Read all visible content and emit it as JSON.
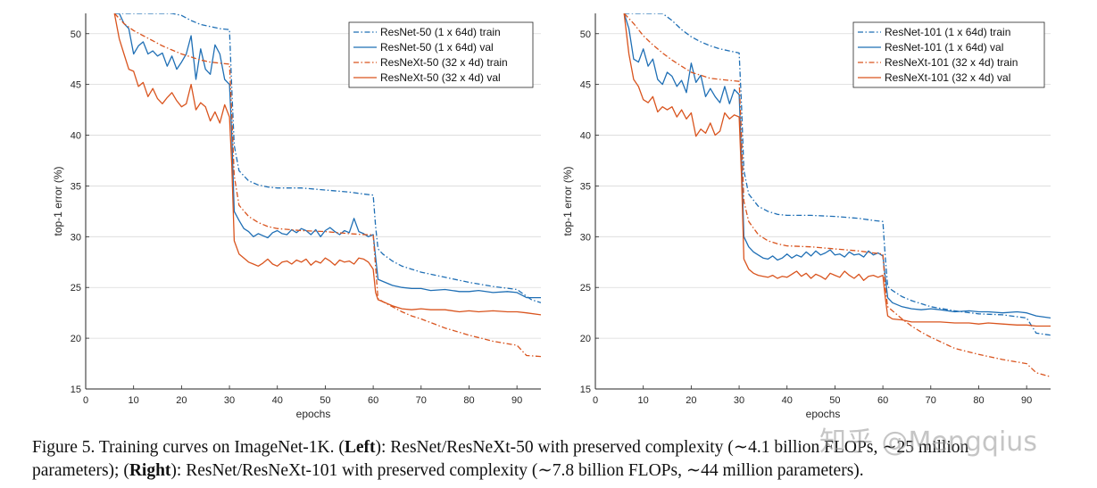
{
  "chart_data": [
    {
      "type": "line",
      "panel": "left",
      "xlabel": "epochs",
      "ylabel": "top-1 error (%)",
      "xlim": [
        0,
        95
      ],
      "ylim": [
        15,
        52
      ],
      "xticks": [
        "0",
        "10",
        "20",
        "30",
        "40",
        "50",
        "60",
        "70",
        "80",
        "90"
      ],
      "yticks": [
        "15",
        "20",
        "25",
        "30",
        "35",
        "40",
        "45",
        "50"
      ],
      "grid": "horizontal",
      "legend_position": "top-right",
      "series": [
        {
          "name": "ResNet-50 (1 x 64d) train",
          "color": "#1f6fb5",
          "style": "dashdot",
          "x": [
            6,
            8,
            10,
            12,
            14,
            16,
            18,
            20,
            22,
            24,
            26,
            28,
            30,
            30.5,
            31,
            32,
            34,
            36,
            38,
            40,
            45,
            50,
            55,
            58,
            60,
            60.5,
            61,
            62,
            64,
            66,
            68,
            70,
            75,
            80,
            85,
            90,
            93,
            95
          ],
          "y": [
            52,
            52,
            52,
            52,
            52,
            52,
            52,
            51.8,
            51.3,
            50.9,
            50.7,
            50.5,
            50.4,
            44.5,
            39,
            36.5,
            35.5,
            35.1,
            34.9,
            34.8,
            34.8,
            34.6,
            34.4,
            34.2,
            34.1,
            31,
            28.8,
            28.3,
            27.6,
            27.1,
            26.8,
            26.5,
            26.0,
            25.5,
            25.1,
            24.8,
            23.8,
            23.5
          ]
        },
        {
          "name": "ResNet-50 (1 x 64d) val",
          "color": "#1f6fb5",
          "style": "solid",
          "x": [
            6,
            7,
            8,
            9,
            10,
            11,
            12,
            13,
            14,
            15,
            16,
            17,
            18,
            19,
            20,
            21,
            22,
            23,
            24,
            25,
            26,
            27,
            28,
            29,
            30,
            30.5,
            31,
            32,
            33,
            34,
            35,
            36,
            37,
            38,
            39,
            40,
            41,
            42,
            43,
            44,
            45,
            46,
            47,
            48,
            49,
            50,
            51,
            52,
            53,
            54,
            55,
            56,
            57,
            58,
            59,
            60,
            60.5,
            61,
            62,
            64,
            66,
            68,
            70,
            72,
            75,
            78,
            80,
            82,
            85,
            88,
            90,
            92,
            95
          ],
          "y": [
            52,
            52,
            51,
            50.5,
            48,
            48.8,
            49.2,
            48,
            48.3,
            47.8,
            48.1,
            46.8,
            47.8,
            46.5,
            47.2,
            48,
            49.8,
            45.5,
            48.5,
            46.5,
            46,
            48.9,
            48,
            45.5,
            45,
            40,
            32.5,
            31.6,
            30.8,
            30.5,
            30.0,
            30.3,
            30.1,
            29.9,
            30.4,
            30.6,
            30.3,
            30.2,
            30.7,
            30.4,
            30.8,
            30.6,
            30.2,
            30.7,
            30.0,
            30.6,
            30.9,
            30.5,
            30.2,
            30.6,
            30.4,
            31.8,
            30.5,
            30.3,
            30.0,
            30.2,
            28,
            25.8,
            25.6,
            25.2,
            25.0,
            24.9,
            24.9,
            24.7,
            24.8,
            24.6,
            24.6,
            24.7,
            24.5,
            24.6,
            24.5,
            24.0,
            24.0
          ]
        },
        {
          "name": "ResNeXt-50 (32 x 4d) train",
          "color": "#d9541e",
          "style": "dashdot",
          "x": [
            6,
            8,
            10,
            12,
            14,
            16,
            18,
            20,
            22,
            24,
            26,
            28,
            30,
            30.5,
            31,
            32,
            34,
            36,
            38,
            40,
            45,
            50,
            55,
            58,
            60,
            60.5,
            61,
            62,
            64,
            66,
            68,
            70,
            75,
            80,
            85,
            90,
            92,
            95
          ],
          "y": [
            52,
            51,
            50.3,
            49.8,
            49.3,
            48.8,
            48.4,
            48.0,
            47.7,
            47.4,
            47.2,
            47.1,
            47.0,
            42,
            36,
            33.1,
            32.0,
            31.4,
            31.0,
            30.8,
            30.6,
            30.5,
            30.3,
            30.2,
            30.2,
            27,
            23.9,
            23.6,
            23.1,
            22.6,
            22.2,
            21.9,
            21.0,
            20.3,
            19.7,
            19.3,
            18.3,
            18.2
          ]
        },
        {
          "name": "ResNeXt-50 (32 x 4d) val",
          "color": "#d9541e",
          "style": "solid",
          "x": [
            6,
            7,
            8,
            9,
            10,
            11,
            12,
            13,
            14,
            15,
            16,
            17,
            18,
            19,
            20,
            21,
            22,
            23,
            24,
            25,
            26,
            27,
            28,
            29,
            30,
            30.5,
            31,
            32,
            33,
            34,
            35,
            36,
            37,
            38,
            39,
            40,
            41,
            42,
            43,
            44,
            45,
            46,
            47,
            48,
            49,
            50,
            51,
            52,
            53,
            54,
            55,
            56,
            57,
            58,
            59,
            60,
            60.5,
            61,
            62,
            64,
            66,
            68,
            70,
            72,
            75,
            78,
            80,
            82,
            85,
            88,
            90,
            92,
            95
          ],
          "y": [
            52,
            49.5,
            48,
            46.5,
            46.3,
            44.8,
            45.2,
            43.8,
            44.6,
            43.6,
            43.1,
            43.7,
            44.2,
            43.4,
            42.8,
            43.1,
            45.0,
            42.5,
            43.2,
            42.8,
            41.4,
            42.3,
            41.2,
            43.0,
            41.8,
            37,
            29.6,
            28.3,
            27.9,
            27.5,
            27.3,
            27.1,
            27.4,
            27.8,
            27.3,
            27.1,
            27.5,
            27.6,
            27.3,
            27.7,
            27.5,
            27.8,
            27.2,
            27.6,
            27.4,
            27.9,
            27.6,
            27.2,
            27.7,
            27.5,
            27.6,
            27.3,
            27.9,
            27.8,
            27.5,
            26.8,
            24.5,
            23.8,
            23.6,
            23.2,
            22.9,
            22.8,
            22.9,
            22.8,
            22.8,
            22.6,
            22.7,
            22.6,
            22.7,
            22.6,
            22.6,
            22.5,
            22.3
          ]
        }
      ]
    },
    {
      "type": "line",
      "panel": "right",
      "xlabel": "epochs",
      "ylabel": "top-1 error (%)",
      "xlim": [
        0,
        95
      ],
      "ylim": [
        15,
        52
      ],
      "xticks": [
        "0",
        "10",
        "20",
        "30",
        "40",
        "50",
        "60",
        "70",
        "80",
        "90"
      ],
      "yticks": [
        "15",
        "20",
        "25",
        "30",
        "35",
        "40",
        "45",
        "50"
      ],
      "grid": "horizontal",
      "legend_position": "top-right",
      "series": [
        {
          "name": "ResNet-101 (1 x 64d) train",
          "color": "#1f6fb5",
          "style": "dashdot",
          "x": [
            6,
            8,
            10,
            12,
            14,
            16,
            18,
            20,
            22,
            24,
            26,
            28,
            30,
            30.5,
            31,
            32,
            34,
            36,
            38,
            40,
            45,
            50,
            55,
            58,
            60,
            60.5,
            61,
            62,
            64,
            66,
            68,
            70,
            75,
            80,
            85,
            90,
            92,
            95
          ],
          "y": [
            52,
            52,
            52,
            52,
            52,
            51.3,
            50.4,
            49.7,
            49.2,
            48.8,
            48.5,
            48.3,
            48.1,
            43,
            36.5,
            34.2,
            33.0,
            32.5,
            32.2,
            32.1,
            32.1,
            32.0,
            31.8,
            31.6,
            31.5,
            28,
            25.1,
            24.7,
            24.1,
            23.7,
            23.4,
            23.1,
            22.7,
            22.4,
            22.3,
            22.0,
            20.5,
            20.3
          ]
        },
        {
          "name": "ResNet-101 (1 x 64d) val",
          "color": "#1f6fb5",
          "style": "solid",
          "x": [
            6,
            7,
            8,
            9,
            10,
            11,
            12,
            13,
            14,
            15,
            16,
            17,
            18,
            19,
            20,
            21,
            22,
            23,
            24,
            25,
            26,
            27,
            28,
            29,
            30,
            30.5,
            31,
            32,
            33,
            34,
            35,
            36,
            37,
            38,
            39,
            40,
            41,
            42,
            43,
            44,
            45,
            46,
            47,
            48,
            49,
            50,
            51,
            52,
            53,
            54,
            55,
            56,
            57,
            58,
            59,
            60,
            60.5,
            61,
            62,
            64,
            66,
            68,
            70,
            72,
            75,
            78,
            80,
            82,
            85,
            88,
            90,
            92,
            95
          ],
          "y": [
            52,
            50.5,
            47.5,
            47.2,
            48.5,
            46.8,
            47.5,
            45.5,
            45.0,
            46.2,
            45.8,
            44.8,
            45.4,
            44.2,
            47.1,
            45.2,
            45.9,
            43.8,
            44.6,
            43.8,
            43.2,
            44.8,
            43.1,
            44.5,
            44.0,
            38,
            30.0,
            29.0,
            28.5,
            28.2,
            27.9,
            27.8,
            28.1,
            27.7,
            27.9,
            28.3,
            27.9,
            28.2,
            28.0,
            28.5,
            28.1,
            28.6,
            28.2,
            28.4,
            28.7,
            28.2,
            28.3,
            28.0,
            28.5,
            28.2,
            28.3,
            28.0,
            28.6,
            28.2,
            28.4,
            28.1,
            26,
            24.0,
            23.5,
            23.1,
            22.9,
            22.8,
            22.9,
            22.8,
            22.6,
            22.7,
            22.6,
            22.6,
            22.5,
            22.6,
            22.5,
            22.2,
            22.0
          ]
        },
        {
          "name": "ResNeXt-101 (32 x 4d) train",
          "color": "#d9541e",
          "style": "dashdot",
          "x": [
            6,
            8,
            10,
            12,
            14,
            16,
            18,
            20,
            22,
            24,
            26,
            28,
            30,
            30.5,
            31,
            32,
            34,
            36,
            38,
            40,
            45,
            50,
            55,
            58,
            60,
            60.5,
            61,
            62,
            64,
            66,
            68,
            70,
            75,
            80,
            85,
            90,
            92,
            95
          ],
          "y": [
            52,
            51,
            49.8,
            48.9,
            48.1,
            47.4,
            46.8,
            46.2,
            45.9,
            45.6,
            45.5,
            45.4,
            45.3,
            40,
            33.5,
            31.5,
            30.2,
            29.6,
            29.3,
            29.1,
            29.0,
            28.8,
            28.6,
            28.4,
            28.3,
            25,
            23.1,
            22.7,
            21.9,
            21.2,
            20.6,
            20.1,
            19.0,
            18.4,
            17.9,
            17.5,
            16.6,
            16.2
          ]
        },
        {
          "name": "ResNeXt-101 (32 x 4d) val",
          "color": "#d9541e",
          "style": "solid",
          "x": [
            6,
            7,
            8,
            9,
            10,
            11,
            12,
            13,
            14,
            15,
            16,
            17,
            18,
            19,
            20,
            21,
            22,
            23,
            24,
            25,
            26,
            27,
            28,
            29,
            30,
            30.5,
            31,
            32,
            33,
            34,
            35,
            36,
            37,
            38,
            39,
            40,
            41,
            42,
            43,
            44,
            45,
            46,
            47,
            48,
            49,
            50,
            51,
            52,
            53,
            54,
            55,
            56,
            57,
            58,
            59,
            60,
            60.5,
            61,
            62,
            64,
            66,
            68,
            70,
            72,
            75,
            78,
            80,
            82,
            85,
            88,
            90,
            92,
            95
          ],
          "y": [
            52,
            48.0,
            45.5,
            44.8,
            43.5,
            43.2,
            43.8,
            42.3,
            42.8,
            42.5,
            42.8,
            41.8,
            42.5,
            41.6,
            42.2,
            39.9,
            40.6,
            40.2,
            41.2,
            40.0,
            40.4,
            42.2,
            41.6,
            42.0,
            41.8,
            36,
            27.8,
            26.8,
            26.4,
            26.2,
            26.1,
            26.0,
            26.2,
            25.9,
            26.1,
            26.0,
            26.3,
            26.6,
            26.1,
            26.4,
            25.9,
            26.3,
            26.1,
            25.8,
            26.4,
            26.2,
            26.0,
            26.6,
            26.2,
            25.9,
            26.3,
            25.7,
            26.1,
            26.2,
            26.0,
            26.2,
            24,
            22.2,
            21.9,
            21.8,
            21.6,
            21.6,
            21.6,
            21.6,
            21.5,
            21.5,
            21.4,
            21.5,
            21.4,
            21.3,
            21.3,
            21.2,
            21.2
          ]
        }
      ]
    }
  ],
  "caption": {
    "line1_prefix": "Figure 5. Training curves on ImageNet-1K. (",
    "line1_left": "Left",
    "line1_middle": "):  ResNet/ResNeXt-50 with preserved complexity (∼4.1 billion FLOPs, ∼25 million",
    "line2_prefix": "parameters); (",
    "line2_right": "Right",
    "line2_suffix": "): ResNet/ResNeXt-101 with preserved complexity (∼7.8 billion FLOPs, ∼44 million parameters)."
  },
  "watermark": "知乎 @Mengqius"
}
